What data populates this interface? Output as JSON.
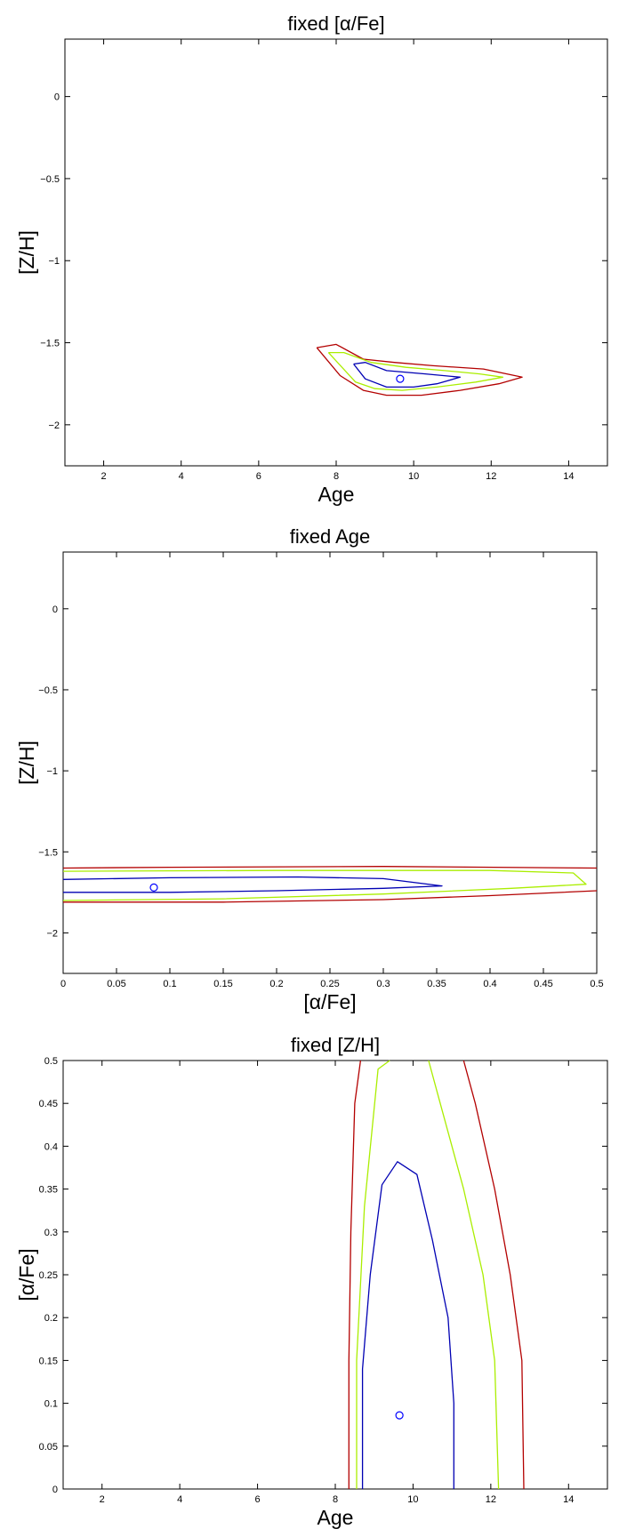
{
  "chart_data": [
    {
      "type": "contour",
      "title": "fixed [α/Fe]",
      "xlabel": "Age",
      "ylabel": "[Z/H]",
      "xlim": [
        1,
        15
      ],
      "ylim": [
        -2.25,
        0.35
      ],
      "xticks": [
        2,
        4,
        6,
        8,
        10,
        12,
        14
      ],
      "yticks": [
        0,
        -0.5,
        -1,
        -1.5,
        -2
      ],
      "grid": false,
      "series": [
        {
          "color": "#b30000",
          "points": [
            [
              7.5,
              -1.53
            ],
            [
              8.0,
              -1.51
            ],
            [
              8.7,
              -1.6
            ],
            [
              9.5,
              -1.62
            ],
            [
              10.5,
              -1.64
            ],
            [
              11.8,
              -1.66
            ],
            [
              12.8,
              -1.71
            ],
            [
              12.2,
              -1.75
            ],
            [
              11.2,
              -1.79
            ],
            [
              10.2,
              -1.82
            ],
            [
              9.3,
              -1.82
            ],
            [
              8.7,
              -1.79
            ],
            [
              8.1,
              -1.7
            ],
            [
              7.5,
              -1.53
            ]
          ]
        },
        {
          "color": "#aaee00",
          "points": [
            [
              7.8,
              -1.56
            ],
            [
              8.2,
              -1.56
            ],
            [
              8.9,
              -1.62
            ],
            [
              9.8,
              -1.65
            ],
            [
              10.8,
              -1.67
            ],
            [
              11.7,
              -1.69
            ],
            [
              12.3,
              -1.71
            ],
            [
              11.6,
              -1.74
            ],
            [
              10.6,
              -1.77
            ],
            [
              9.7,
              -1.79
            ],
            [
              9.0,
              -1.78
            ],
            [
              8.5,
              -1.74
            ],
            [
              7.8,
              -1.56
            ]
          ]
        },
        {
          "color": "#0000b3",
          "points": [
            [
              8.45,
              -1.63
            ],
            [
              8.75,
              -1.62
            ],
            [
              9.3,
              -1.67
            ],
            [
              10.3,
              -1.69
            ],
            [
              11.2,
              -1.71
            ],
            [
              10.6,
              -1.75
            ],
            [
              10.0,
              -1.77
            ],
            [
              9.3,
              -1.77
            ],
            [
              8.75,
              -1.72
            ],
            [
              8.45,
              -1.63
            ]
          ]
        }
      ],
      "best_fit": {
        "x": 9.65,
        "y": -1.72,
        "color": "#0000ff"
      }
    },
    {
      "type": "contour",
      "title": "fixed Age",
      "xlabel": "[α/Fe]",
      "ylabel": "[Z/H]",
      "xlim": [
        0,
        0.5
      ],
      "ylim": [
        -2.25,
        0.35
      ],
      "xticks": [
        0,
        0.05,
        0.1,
        0.15,
        0.2,
        0.25,
        0.3,
        0.35,
        0.4,
        0.45,
        0.5
      ],
      "yticks": [
        0,
        -0.5,
        -1,
        -1.5,
        -2
      ],
      "grid": false,
      "series": [
        {
          "color": "#b30000",
          "points": [
            [
              0,
              -1.6
            ],
            [
              0.1,
              -1.595
            ],
            [
              0.3,
              -1.59
            ],
            [
              0.5,
              -1.6
            ]
          ]
        },
        {
          "color": "#b30000",
          "points": [
            [
              0,
              -1.81
            ],
            [
              0.15,
              -1.81
            ],
            [
              0.3,
              -1.795
            ],
            [
              0.4,
              -1.77
            ],
            [
              0.5,
              -1.74
            ]
          ]
        },
        {
          "color": "#aaee00",
          "points": [
            [
              0,
              -1.62
            ],
            [
              0.2,
              -1.615
            ],
            [
              0.4,
              -1.615
            ],
            [
              0.478,
              -1.63
            ],
            [
              0.49,
              -1.7
            ],
            [
              0.42,
              -1.725
            ],
            [
              0.3,
              -1.76
            ],
            [
              0.15,
              -1.79
            ],
            [
              0,
              -1.8
            ]
          ]
        },
        {
          "color": "#0000b3",
          "points": [
            [
              0,
              -1.67
            ],
            [
              0.1,
              -1.66
            ],
            [
              0.22,
              -1.655
            ],
            [
              0.3,
              -1.665
            ],
            [
              0.355,
              -1.71
            ],
            [
              0.3,
              -1.725
            ],
            [
              0.2,
              -1.74
            ],
            [
              0.1,
              -1.75
            ],
            [
              0,
              -1.75
            ]
          ]
        }
      ],
      "best_fit": {
        "x": 0.085,
        "y": -1.72,
        "color": "#0000ff"
      }
    },
    {
      "type": "contour",
      "title": "fixed [Z/H]",
      "xlabel": "Age",
      "ylabel": "[α/Fe]",
      "xlim": [
        1,
        15
      ],
      "ylim": [
        0,
        0.5
      ],
      "xticks": [
        2,
        4,
        6,
        8,
        10,
        12,
        14
      ],
      "yticks": [
        0,
        0.05,
        0.1,
        0.15,
        0.2,
        0.25,
        0.3,
        0.35,
        0.4,
        0.45,
        0.5
      ],
      "grid": false,
      "series": [
        {
          "color": "#b30000",
          "points": [
            [
              8.35,
              0
            ],
            [
              8.35,
              0.15
            ],
            [
              8.4,
              0.3
            ],
            [
              8.5,
              0.45
            ],
            [
              8.65,
              0.5
            ]
          ]
        },
        {
          "color": "#b30000",
          "points": [
            [
              11.3,
              0.5
            ],
            [
              11.6,
              0.45
            ],
            [
              12.1,
              0.35
            ],
            [
              12.5,
              0.25
            ],
            [
              12.8,
              0.15
            ],
            [
              12.85,
              0
            ]
          ]
        },
        {
          "color": "#aaee00",
          "points": [
            [
              8.55,
              0
            ],
            [
              8.55,
              0.15
            ],
            [
              8.75,
              0.33
            ],
            [
              9.1,
              0.49
            ],
            [
              9.4,
              0.5
            ]
          ]
        },
        {
          "color": "#aaee00",
          "points": [
            [
              10.4,
              0.5
            ],
            [
              10.7,
              0.45
            ],
            [
              11.3,
              0.35
            ],
            [
              11.8,
              0.25
            ],
            [
              12.1,
              0.15
            ],
            [
              12.2,
              0
            ]
          ]
        },
        {
          "color": "#0000b3",
          "points": [
            [
              8.7,
              0
            ],
            [
              8.7,
              0.14
            ],
            [
              8.9,
              0.25
            ],
            [
              9.2,
              0.355
            ],
            [
              9.6,
              0.382
            ],
            [
              10.1,
              0.367
            ],
            [
              10.5,
              0.29
            ],
            [
              10.9,
              0.2
            ],
            [
              11.05,
              0.1
            ],
            [
              11.05,
              0
            ]
          ]
        }
      ],
      "best_fit": {
        "x": 9.65,
        "y": 0.086,
        "color": "#0000ff"
      }
    }
  ]
}
